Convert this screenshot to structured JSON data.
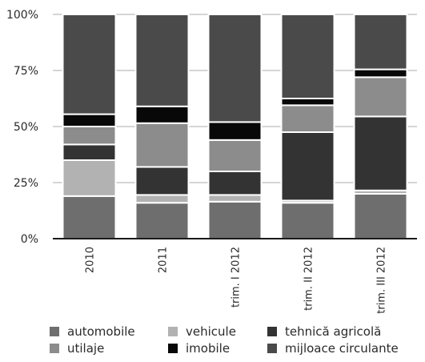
{
  "chart_data": {
    "type": "bar",
    "stacked": true,
    "categories": [
      "2010",
      "2011",
      "trim. I 2012",
      "trim. II 2012",
      "trim. III 2012"
    ],
    "y_ticks": [
      "0%",
      "25%",
      "50%",
      "75%",
      "100%"
    ],
    "ylim": [
      0,
      100
    ],
    "grid": true,
    "legend_position": "bottom",
    "series": [
      {
        "name": "automobile",
        "color": "#6e6e6e",
        "values": [
          19,
          16,
          16.5,
          16,
          20
        ]
      },
      {
        "name": "vehicule",
        "color": "#b2b2b2",
        "values": [
          16,
          3.5,
          3,
          1,
          1.5
        ]
      },
      {
        "name": "tehnică agricolă",
        "color": "#333333",
        "values": [
          7,
          12.5,
          10.5,
          30.5,
          33
        ]
      },
      {
        "name": "utilaje",
        "color": "#8c8c8c",
        "values": [
          8,
          19.5,
          14,
          12,
          17.5
        ]
      },
      {
        "name": "imobile",
        "color": "#080808",
        "values": [
          5.5,
          7.5,
          8,
          3,
          3.5
        ]
      },
      {
        "name": "mijloace circulante",
        "color": "#4a4a4a",
        "values": [
          44.5,
          41,
          48,
          37.5,
          24.5
        ]
      }
    ]
  }
}
